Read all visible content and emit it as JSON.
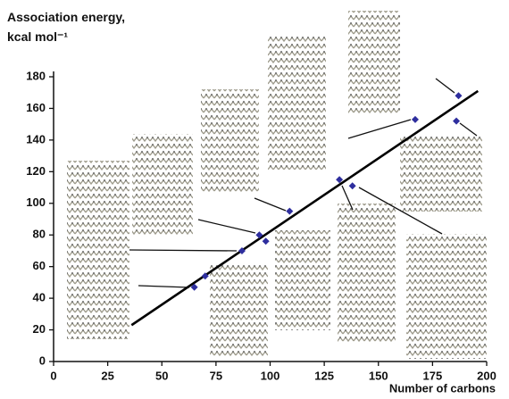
{
  "chart_data": {
    "type": "scatter",
    "y_label": "Association energy, kcal mol⁻¹",
    "x_label": "Number of carbons",
    "x": [
      65,
      70,
      87,
      95,
      98,
      109,
      132,
      138,
      167,
      186,
      187
    ],
    "values": [
      47,
      54,
      70,
      80,
      76,
      95,
      115,
      111,
      153,
      152,
      168
    ],
    "color": "#2e2e9e",
    "fit_line": {
      "x": [
        36,
        196
      ],
      "y": [
        23,
        171
      ]
    },
    "xlim": [
      0,
      200
    ],
    "xticks": [
      0,
      25,
      50,
      75,
      100,
      125,
      150,
      175,
      200
    ],
    "ylim": [
      0,
      180
    ],
    "yticks": [
      0,
      20,
      40,
      60,
      80,
      100,
      120,
      140,
      160,
      180
    ]
  }
}
